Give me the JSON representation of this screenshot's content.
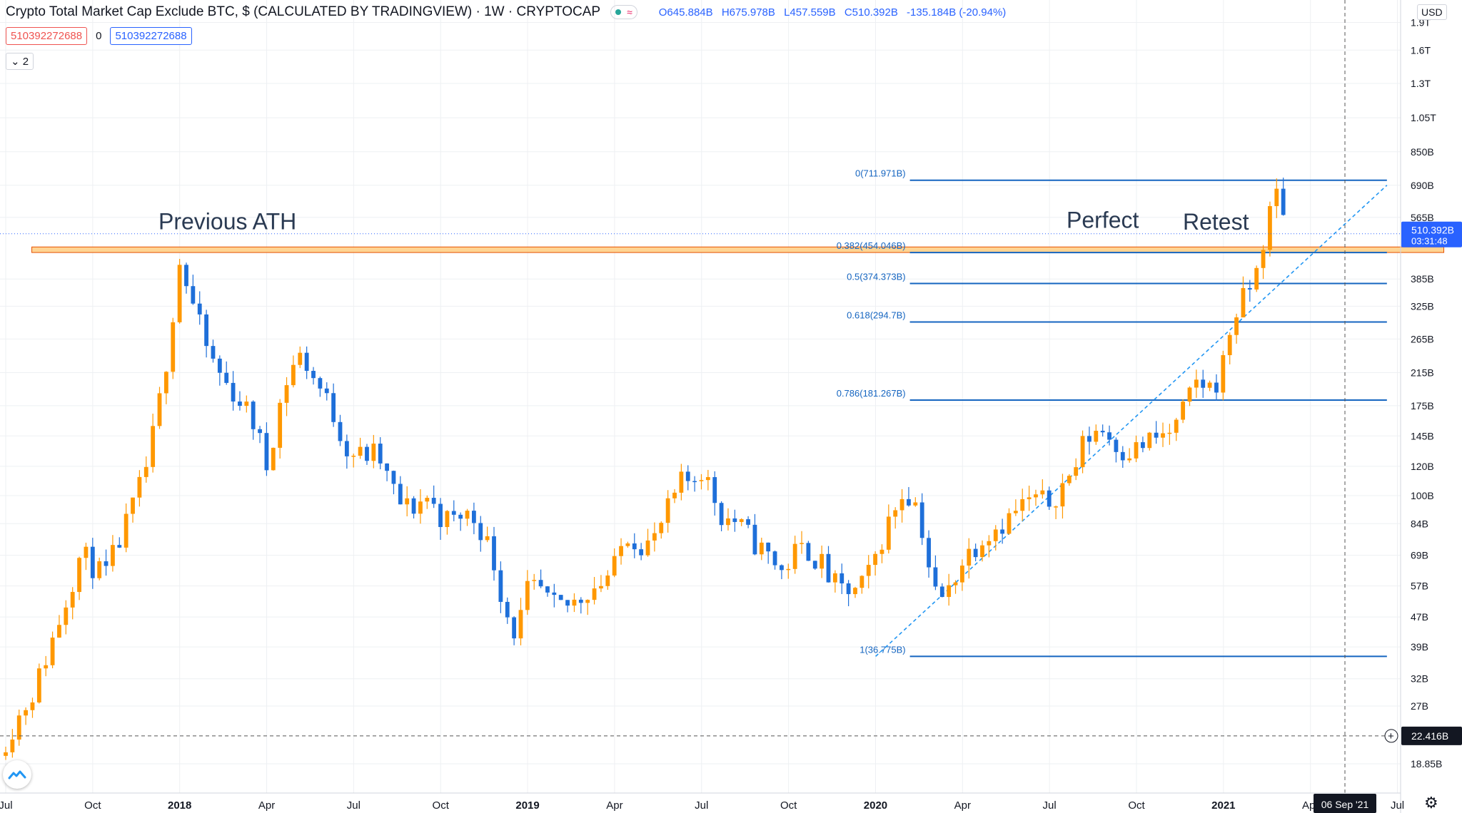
{
  "header": {
    "title": "Crypto Total Market Cap Exclude BTC, $ (CALCULATED BY TRADINGVIEW) · 1W · CRYPTOCAP",
    "wave_symbol": "≈",
    "ohlc": {
      "open": "O645.884B",
      "high": "H675.978B",
      "low": "L457.559B",
      "close": "C510.392B",
      "change": "-135.184B (-20.94%)"
    },
    "value_red": "510392272688",
    "value_zero": "0",
    "value_blue": "510392272688",
    "collapse_label": "⌄ 2",
    "currency": "USD"
  },
  "chart_data": {
    "type": "candlestick",
    "title": "Crypto Total Market Cap Exclude BTC",
    "timeframe": "1W",
    "y_scale": "log",
    "ylim": [
      15.85,
      2100
    ],
    "x_range": [
      "2017-07",
      "2021-10"
    ],
    "x_ticks": [
      {
        "label": "Jul",
        "t": 0,
        "bold": false
      },
      {
        "label": "Oct",
        "t": 3,
        "bold": false
      },
      {
        "label": "2018",
        "t": 6,
        "bold": true
      },
      {
        "label": "Apr",
        "t": 9,
        "bold": false
      },
      {
        "label": "Jul",
        "t": 12,
        "bold": false
      },
      {
        "label": "Oct",
        "t": 15,
        "bold": false
      },
      {
        "label": "2019",
        "t": 18,
        "bold": true
      },
      {
        "label": "Apr",
        "t": 21,
        "bold": false
      },
      {
        "label": "Jul",
        "t": 24,
        "bold": false
      },
      {
        "label": "Oct",
        "t": 27,
        "bold": false
      },
      {
        "label": "2020",
        "t": 30,
        "bold": true
      },
      {
        "label": "Apr",
        "t": 33,
        "bold": false
      },
      {
        "label": "Jul",
        "t": 36,
        "bold": false
      },
      {
        "label": "Oct",
        "t": 39,
        "bold": false
      },
      {
        "label": "2021",
        "t": 42,
        "bold": true
      },
      {
        "label": "Apr",
        "t": 45,
        "bold": false
      },
      {
        "label": "Jul",
        "t": 48,
        "bold": false
      }
    ],
    "y_ticks": [
      {
        "label": "1.9T",
        "v": 1900
      },
      {
        "label": "1.6T",
        "v": 1600
      },
      {
        "label": "1.3T",
        "v": 1300
      },
      {
        "label": "1.05T",
        "v": 1050
      },
      {
        "label": "850B",
        "v": 850
      },
      {
        "label": "690B",
        "v": 690
      },
      {
        "label": "565B",
        "v": 565
      },
      {
        "label": "385B",
        "v": 385
      },
      {
        "label": "325B",
        "v": 325
      },
      {
        "label": "265B",
        "v": 265
      },
      {
        "label": "215B",
        "v": 215
      },
      {
        "label": "175B",
        "v": 175
      },
      {
        "label": "145B",
        "v": 145
      },
      {
        "label": "120B",
        "v": 120
      },
      {
        "label": "100B",
        "v": 100
      },
      {
        "label": "84B",
        "v": 84
      },
      {
        "label": "69B",
        "v": 69
      },
      {
        "label": "57B",
        "v": 57
      },
      {
        "label": "47B",
        "v": 47
      },
      {
        "label": "39B",
        "v": 39
      },
      {
        "label": "32B",
        "v": 32
      },
      {
        "label": "27B",
        "v": 27
      },
      {
        "label": "18.85B",
        "v": 18.85
      }
    ],
    "price_label": {
      "value": 510.392,
      "text": "510.392B",
      "countdown": "03:31:48"
    },
    "crosshair": {
      "value": 22.416,
      "text": "22.416B",
      "date_text": "06 Sep '21",
      "t": 50.4
    },
    "fib_levels": [
      {
        "ratio": 0,
        "value": 711.971,
        "label": "0(711.971B)"
      },
      {
        "ratio": 0.382,
        "value": 454.046,
        "label": "0.382(454.046B)"
      },
      {
        "ratio": 0.5,
        "value": 374.373,
        "label": "0.5(374.373B)"
      },
      {
        "ratio": 0.618,
        "value": 294.7,
        "label": "0.618(294.7B)"
      },
      {
        "ratio": 0.786,
        "value": 181.267,
        "label": "0.786(181.267B)"
      },
      {
        "ratio": 1,
        "value": 36.775,
        "label": "1(36.775B)"
      }
    ],
    "fib_t_start": 30.2,
    "fib_t_end": 50.1,
    "ath_zone": {
      "low": 454,
      "high": 470,
      "t_start": 0.9,
      "t_end": 49.6
    },
    "trendline": {
      "t1": 30.2,
      "v1": 36.775,
      "t2": 50.1,
      "v2": 690
    },
    "annotations": [
      {
        "text": "Previous ATH",
        "t": 0.9,
        "v": 515
      },
      {
        "text": "Perfect",
        "t": 40.6,
        "v": 520
      },
      {
        "text": "Retest",
        "t": 44.4,
        "v": 514
      }
    ],
    "anchors": [
      [
        0,
        22
      ],
      [
        1,
        30
      ],
      [
        1.8,
        45
      ],
      [
        2.6,
        70
      ],
      [
        3.4,
        60
      ],
      [
        4.2,
        85
      ],
      [
        4.8,
        115
      ],
      [
        5.2,
        160
      ],
      [
        5.6,
        250
      ],
      [
        6.0,
        430
      ],
      [
        6.5,
        320
      ],
      [
        7.0,
        240
      ],
      [
        7.6,
        200
      ],
      [
        8.1,
        180
      ],
      [
        8.6,
        155
      ],
      [
        9.0,
        120
      ],
      [
        9.4,
        170
      ],
      [
        9.8,
        220
      ],
      [
        10.2,
        240
      ],
      [
        10.6,
        210
      ],
      [
        11.0,
        185
      ],
      [
        11.4,
        160
      ],
      [
        11.8,
        132
      ],
      [
        12.3,
        128
      ],
      [
        12.8,
        130
      ],
      [
        13.2,
        110
      ],
      [
        13.6,
        95
      ],
      [
        14.0,
        92
      ],
      [
        14.5,
        100
      ],
      [
        15.0,
        88
      ],
      [
        15.4,
        85
      ],
      [
        15.8,
        90
      ],
      [
        16.3,
        85
      ],
      [
        16.8,
        68
      ],
      [
        17.2,
        50
      ],
      [
        17.6,
        42
      ],
      [
        18.0,
        55
      ],
      [
        18.4,
        56
      ],
      [
        18.8,
        50
      ],
      [
        19.3,
        50
      ],
      [
        19.7,
        52
      ],
      [
        20.1,
        56
      ],
      [
        20.5,
        58
      ],
      [
        21.0,
        64
      ],
      [
        21.4,
        80
      ],
      [
        21.8,
        75
      ],
      [
        22.3,
        74
      ],
      [
        22.8,
        90
      ],
      [
        23.3,
        108
      ],
      [
        23.6,
        110
      ],
      [
        24.0,
        118
      ],
      [
        24.3,
        105
      ],
      [
        24.7,
        88
      ],
      [
        25.1,
        86
      ],
      [
        25.5,
        80
      ],
      [
        26.0,
        72
      ],
      [
        26.4,
        68
      ],
      [
        26.8,
        62
      ],
      [
        27.2,
        70
      ],
      [
        27.6,
        72
      ],
      [
        28.1,
        66
      ],
      [
        28.5,
        58
      ],
      [
        28.9,
        55
      ],
      [
        29.4,
        55
      ],
      [
        29.8,
        62
      ],
      [
        30.2,
        76
      ],
      [
        30.6,
        90
      ],
      [
        30.9,
        102
      ],
      [
        31.3,
        100
      ],
      [
        31.6,
        82
      ],
      [
        32.0,
        55
      ],
      [
        32.4,
        52
      ],
      [
        32.8,
        63
      ],
      [
        33.2,
        70
      ],
      [
        33.7,
        78
      ],
      [
        34.1,
        82
      ],
      [
        34.6,
        87
      ],
      [
        35.0,
        94
      ],
      [
        35.5,
        98
      ],
      [
        35.9,
        95
      ],
      [
        36.3,
        103
      ],
      [
        36.8,
        115
      ],
      [
        37.1,
        135
      ],
      [
        37.5,
        150
      ],
      [
        37.8,
        152
      ],
      [
        38.2,
        140
      ],
      [
        38.6,
        132
      ],
      [
        39.0,
        134
      ],
      [
        39.4,
        140
      ],
      [
        39.8,
        144
      ],
      [
        40.3,
        150
      ],
      [
        40.7,
        175
      ],
      [
        41.1,
        205
      ],
      [
        41.5,
        195
      ],
      [
        41.9,
        210
      ],
      [
        42.3,
        300
      ],
      [
        42.7,
        340
      ],
      [
        43.1,
        390
      ],
      [
        43.4,
        500
      ],
      [
        43.7,
        620
      ],
      [
        43.95,
        690
      ],
      [
        44.2,
        510
      ]
    ]
  },
  "colors": {
    "up": "#ff9800",
    "down": "#1e6fd9",
    "fib": "#1565c0",
    "ath": "#ffcc80",
    "ath_border": "#e65100",
    "annotation": "#2a3a52",
    "grid": "#eef0f3"
  }
}
